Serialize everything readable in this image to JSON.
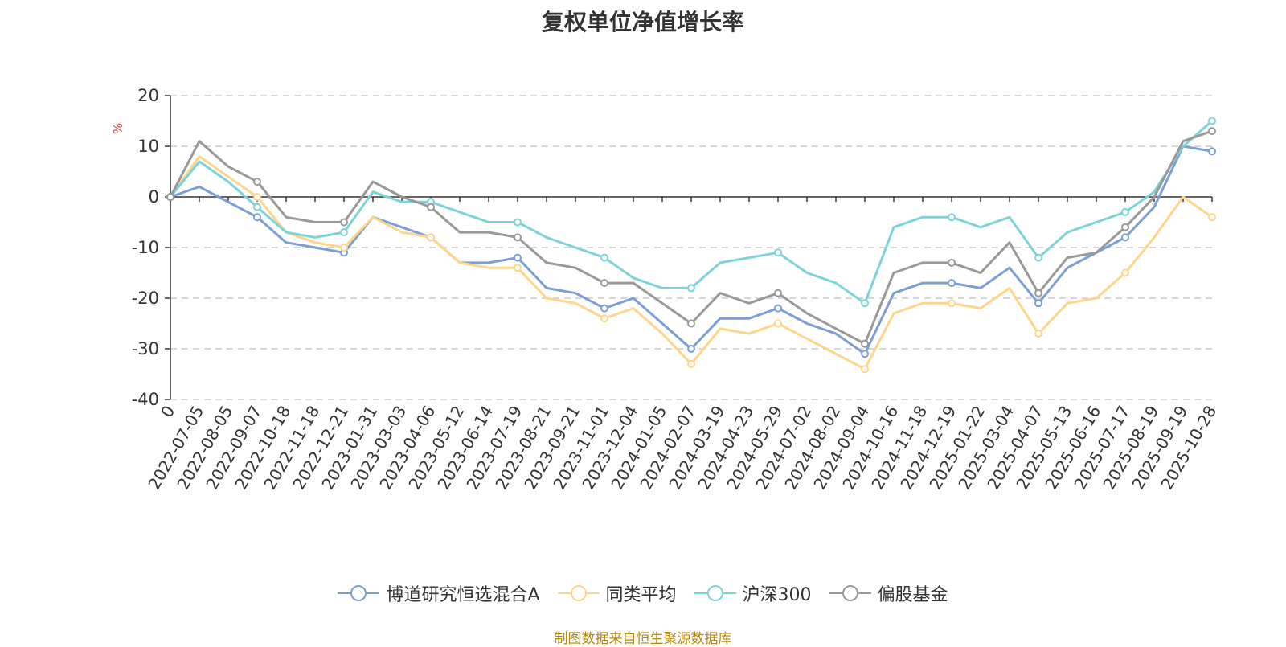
{
  "chart_data": {
    "type": "line",
    "title": "复权单位净值增长率",
    "ylabel": "%",
    "ylim": [
      -40,
      20
    ],
    "yticks": [
      20,
      10,
      0,
      -10,
      -20,
      -30,
      -40
    ],
    "grid": true,
    "legend_position": "bottom",
    "categories": [
      "0",
      "2022-07-05",
      "2022-08-05",
      "2022-09-07",
      "2022-10-18",
      "2022-11-18",
      "2022-12-21",
      "2023-01-31",
      "2023-03-03",
      "2023-04-06",
      "2023-05-12",
      "2023-06-14",
      "2023-07-19",
      "2023-08-21",
      "2023-09-21",
      "2023-11-01",
      "2023-12-04",
      "2024-01-05",
      "2024-02-07",
      "2024-03-19",
      "2024-04-23",
      "2024-05-29",
      "2024-07-02",
      "2024-08-02",
      "2024-09-04",
      "2024-10-16",
      "2024-11-18",
      "2024-12-19",
      "2025-01-22",
      "2025-03-04",
      "2025-04-07",
      "2025-05-13",
      "2025-06-16",
      "2025-07-17",
      "2025-08-19",
      "2025-09-19",
      "2025-10-28"
    ],
    "series": [
      {
        "name": "博道研究恒选混合A",
        "color": "#7b9fd4",
        "values": [
          0,
          2,
          -1,
          -4,
          -9,
          -10,
          -11,
          -4,
          -6,
          -8,
          -13,
          -13,
          -12,
          -18,
          -19,
          -22,
          -20,
          -25,
          -30,
          -24,
          -24,
          -22,
          -25,
          -27,
          -31,
          -19,
          -17,
          -17,
          -18,
          -14,
          -21,
          -14,
          -11,
          -8,
          -2,
          10,
          9
        ]
      },
      {
        "name": "同类平均",
        "color": "#fdd58b",
        "values": [
          0,
          8,
          4,
          0,
          -7,
          -9,
          -10,
          -4,
          -7,
          -8,
          -13,
          -14,
          -14,
          -20,
          -21,
          -24,
          -22,
          -27,
          -33,
          -26,
          -27,
          -25,
          -28,
          -31,
          -34,
          -23,
          -21,
          -21,
          -22,
          -18,
          -27,
          -21,
          -20,
          -15,
          -8,
          0,
          -4
        ]
      },
      {
        "name": "沪深300",
        "color": "#7dd3d6",
        "values": [
          0,
          7,
          3,
          -2,
          -7,
          -8,
          -7,
          1,
          -1,
          -1,
          -3,
          -5,
          -5,
          -8,
          -10,
          -12,
          -16,
          -18,
          -18,
          -13,
          -12,
          -11,
          -15,
          -17,
          -21,
          -6,
          -4,
          -4,
          -6,
          -4,
          -12,
          -7,
          -5,
          -3,
          1,
          10,
          15
        ]
      },
      {
        "name": "偏股基金",
        "color": "#999999",
        "values": [
          0,
          11,
          6,
          3,
          -4,
          -5,
          -5,
          3,
          0,
          -2,
          -7,
          -7,
          -8,
          -13,
          -14,
          -17,
          -17,
          -21,
          -25,
          -19,
          -21,
          -19,
          -23,
          -26,
          -29,
          -15,
          -13,
          -13,
          -15,
          -9,
          -19,
          -12,
          -11,
          -6,
          0,
          11,
          13
        ]
      }
    ]
  },
  "legend": [
    {
      "label": "博道研究恒选混合A",
      "color": "#7b9fd4"
    },
    {
      "label": "同类平均",
      "color": "#fdd58b"
    },
    {
      "label": "沪深300",
      "color": "#7dd3d6"
    },
    {
      "label": "偏股基金",
      "color": "#999999"
    }
  ],
  "source_text": "制图数据来自恒生聚源数据库"
}
